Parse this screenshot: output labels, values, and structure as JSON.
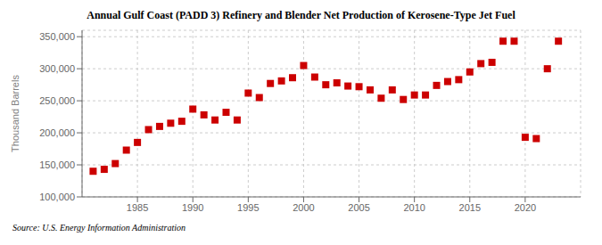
{
  "chart_data": {
    "type": "scatter",
    "title": "Annual Gulf Coast (PADD 3) Refinery and Blender Net Production of Kerosene-Type Jet Fuel",
    "ylabel": "Thousand Barrels",
    "annotations": [
      "Source: U.S. Energy Information Administration"
    ],
    "x": [
      1981,
      1982,
      1983,
      1984,
      1985,
      1986,
      1987,
      1988,
      1989,
      1990,
      1991,
      1992,
      1993,
      1994,
      1995,
      1996,
      1997,
      1998,
      1999,
      2000,
      2001,
      2002,
      2003,
      2004,
      2005,
      2006,
      2007,
      2008,
      2009,
      2010,
      2011,
      2012,
      2013,
      2014,
      2015,
      2016,
      2017,
      2018,
      2019,
      2020,
      2021,
      2022,
      2023
    ],
    "values": [
      140000,
      143000,
      152000,
      173000,
      185000,
      205000,
      210000,
      215000,
      218000,
      237000,
      228000,
      220000,
      232000,
      220000,
      262000,
      255000,
      277000,
      281000,
      286000,
      305000,
      287000,
      275000,
      278000,
      273000,
      272000,
      267000,
      254000,
      267000,
      252000,
      259000,
      259000,
      274000,
      280000,
      283000,
      295000,
      308000,
      310000,
      343000,
      343000,
      193000,
      191000,
      300000,
      343000
    ],
    "color": "#cc0000",
    "marker": "square",
    "xlim": [
      1980,
      2025
    ],
    "xticks": [
      1985,
      1990,
      1995,
      2000,
      2005,
      2010,
      2015,
      2020
    ],
    "ylim": [
      100000,
      360000
    ],
    "yticks": [
      {
        "value": 100000,
        "label": "100,000"
      },
      {
        "value": 150000,
        "label": "150,000"
      },
      {
        "value": 200000,
        "label": "200,000"
      },
      {
        "value": 250000,
        "label": "250,000"
      },
      {
        "value": 300000,
        "label": "300,000"
      },
      {
        "value": 350000,
        "label": "350,000"
      }
    ],
    "grid": true
  }
}
